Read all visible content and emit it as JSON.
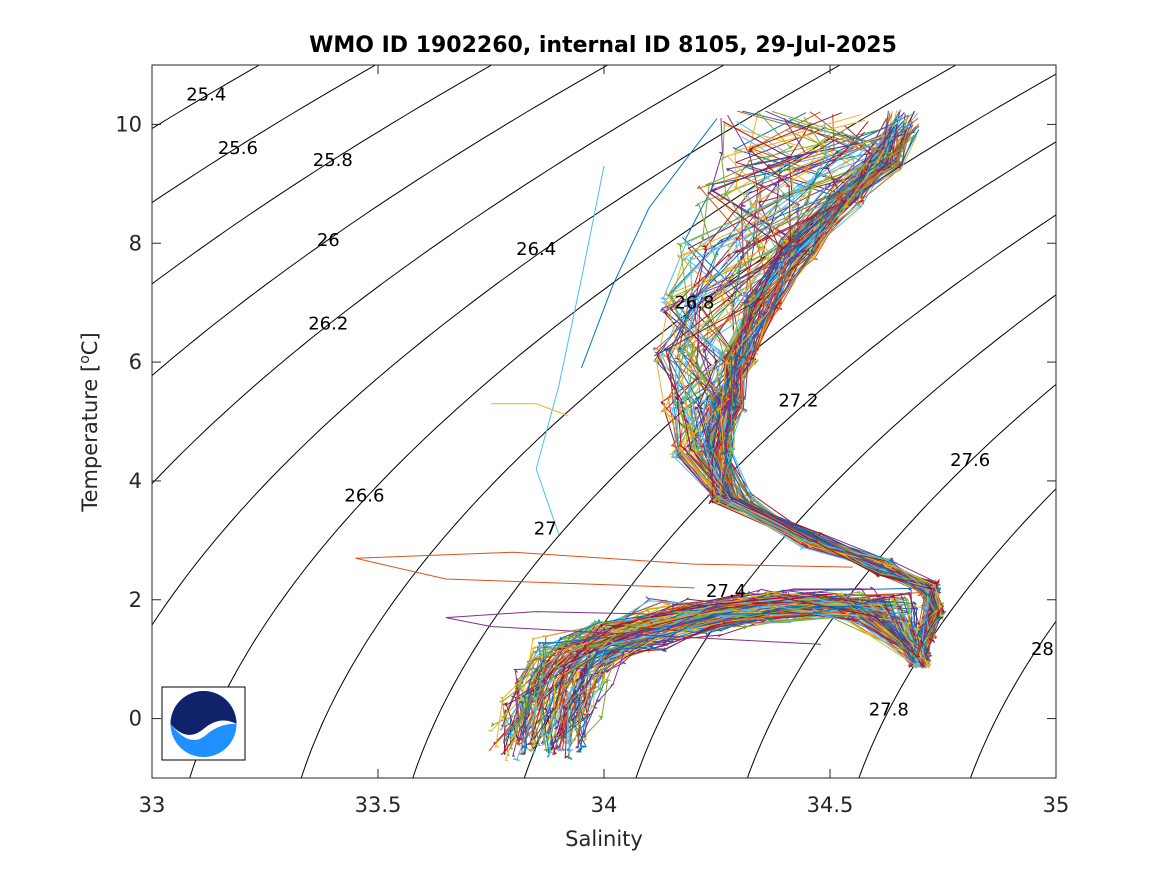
{
  "chart_data": {
    "type": "line",
    "title": "WMO ID 1902260, internal ID 8105, 29-Jul-2025",
    "xlabel": "Salinity",
    "ylabel_main": "Temperature [",
    "ylabel_sup": "o",
    "ylabel_end": "C]",
    "xlim": [
      33,
      35
    ],
    "ylim": [
      -1,
      11
    ],
    "xticks": [
      {
        "value": 33,
        "label": "33"
      },
      {
        "value": 33.5,
        "label": "33.5"
      },
      {
        "value": 34,
        "label": "34"
      },
      {
        "value": 34.5,
        "label": "34.5"
      },
      {
        "value": 35,
        "label": "35"
      }
    ],
    "yticks": [
      {
        "value": 0,
        "label": "0"
      },
      {
        "value": 2,
        "label": "2"
      },
      {
        "value": 4,
        "label": "4"
      },
      {
        "value": 6,
        "label": "6"
      },
      {
        "value": 8,
        "label": "8"
      },
      {
        "value": 10,
        "label": "10"
      }
    ],
    "grid": false,
    "density_contours": [
      {
        "level": 25.4,
        "label": "25.4",
        "label_at": [
          33.12,
          10.4
        ]
      },
      {
        "level": 25.6,
        "label": "25.6",
        "label_at": [
          33.19,
          9.5
        ]
      },
      {
        "level": 25.8,
        "label": "25.8",
        "label_at": [
          33.4,
          9.3
        ]
      },
      {
        "level": 26.0,
        "label": "26",
        "label_at": [
          33.39,
          7.95
        ]
      },
      {
        "level": 26.2,
        "label": "26.2",
        "label_at": [
          33.39,
          6.55
        ]
      },
      {
        "level": 26.4,
        "label": "26.4",
        "label_at": [
          33.85,
          7.8
        ]
      },
      {
        "level": 26.6,
        "label": "26.6",
        "label_at": [
          33.47,
          3.65
        ]
      },
      {
        "level": 26.8,
        "label": "26.8",
        "label_at": [
          34.2,
          6.9
        ]
      },
      {
        "level": 27.0,
        "label": "27",
        "label_at": [
          33.87,
          3.1
        ]
      },
      {
        "level": 27.2,
        "label": "27.2",
        "label_at": [
          34.43,
          5.25
        ]
      },
      {
        "level": 27.4,
        "label": "27.4",
        "label_at": [
          34.27,
          2.05
        ]
      },
      {
        "level": 27.6,
        "label": "27.6",
        "label_at": [
          34.81,
          4.25
        ]
      },
      {
        "level": 27.8,
        "label": "27.8",
        "label_at": [
          34.63,
          0.05
        ]
      },
      {
        "level": 28.0,
        "label": "28",
        "label_at": [
          34.97,
          1.07
        ]
      }
    ],
    "series_colors": [
      "#0072BD",
      "#D95319",
      "#EDB120",
      "#7E2F8E",
      "#77AC30",
      "#4DBEEE",
      "#A2142F"
    ],
    "profile_shape": [
      [
        34.7,
        10.0
      ],
      [
        34.66,
        9.4
      ],
      [
        34.57,
        8.8
      ],
      [
        34.47,
        7.9
      ],
      [
        34.39,
        7.0
      ],
      [
        34.34,
        6.1
      ],
      [
        34.31,
        5.3
      ],
      [
        34.29,
        4.5
      ],
      [
        34.33,
        3.7
      ],
      [
        34.46,
        3.0
      ],
      [
        34.62,
        2.55
      ],
      [
        34.72,
        2.2
      ],
      [
        34.73,
        1.8
      ],
      [
        34.71,
        1.4
      ],
      [
        34.7,
        1.0
      ],
      [
        34.6,
        1.9
      ],
      [
        34.4,
        1.9
      ],
      [
        34.2,
        1.7
      ],
      [
        34.05,
        1.4
      ],
      [
        33.95,
        1.1
      ],
      [
        33.91,
        0.7
      ],
      [
        33.88,
        0.2
      ],
      [
        33.86,
        -0.4
      ]
    ],
    "watermark": "NOAA logo"
  }
}
